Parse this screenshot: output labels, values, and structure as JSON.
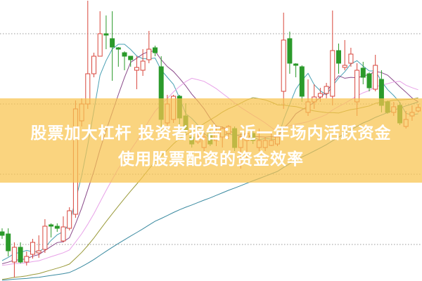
{
  "headline": {
    "line1": "股票加大杠杆 投资者报告：近一年场内活跃资金",
    "line2": "使用股票配资的资金效率"
  },
  "colors": {
    "up": "#d8463c",
    "down": "#2b9a2b",
    "banner": "#f8c44e",
    "grid": "#9a9a9a"
  },
  "chart_data": {
    "type": "candlestick",
    "grid": "horizontal dotted",
    "moving_averages": [
      {
        "period": 5,
        "color": "#4aa0b4"
      },
      {
        "period": 10,
        "color": "#8a4a8a"
      },
      {
        "period": 20,
        "color": "#e8a2e8"
      },
      {
        "period": 30,
        "color": "#9a9a3a"
      },
      {
        "period": 60,
        "color": "#3a8aa0"
      }
    ],
    "ohlc": [
      [
        7.0,
        7.5,
        6.0,
        6.5
      ],
      [
        6.7,
        7.5,
        3.5,
        4.3
      ],
      [
        2.7,
        5.5,
        0.5,
        4.8
      ],
      [
        4.8,
        5.5,
        2.5,
        2.7
      ],
      [
        2.7,
        4.2,
        2.2,
        3.5
      ],
      [
        3.8,
        6.0,
        3.2,
        5.5
      ],
      [
        4.0,
        6.5,
        3.3,
        4.3
      ],
      [
        4.5,
        8.8,
        4.0,
        7.8
      ],
      [
        8.0,
        8.2,
        6.2,
        7.8
      ],
      [
        7.8,
        8.2,
        7.0,
        7.5
      ],
      [
        5.7,
        9.2,
        5.5,
        7.7
      ],
      [
        7.5,
        10.5,
        7.2,
        10.0
      ],
      [
        9.5,
        25.7,
        9.0,
        24.5
      ],
      [
        22.8,
        26.0,
        22.0,
        25.2
      ],
      [
        25.2,
        40,
        24.5,
        29.5
      ],
      [
        29.5,
        32.5,
        29.0,
        32.0
      ],
      [
        32.0,
        38.4,
        32.0,
        35.2
      ],
      [
        35.2,
        37.8,
        33.0,
        35.0
      ],
      [
        34.5,
        38.4,
        28.5,
        33.3
      ],
      [
        33.2,
        33.3,
        30.5,
        33.0
      ],
      [
        32.5,
        32.7,
        30.0,
        32.0
      ],
      [
        32.0,
        32.0,
        30.5,
        31.5
      ],
      [
        30.0,
        32.0,
        27.3,
        30.4
      ],
      [
        30.0,
        33.0,
        29.2,
        31.3
      ],
      [
        31.5,
        35.6,
        31.0,
        33.0
      ],
      [
        33.2,
        33.5,
        32.0,
        32.5
      ],
      [
        30.5,
        32.0,
        21.0,
        23.0
      ],
      [
        22.5,
        26.5,
        22.0,
        25.2
      ],
      [
        23.0,
        26.5,
        22.5,
        26.3
      ],
      [
        26.3,
        26.5,
        22.0,
        23.2
      ],
      [
        23.5,
        25.3,
        21.0,
        21.5
      ],
      [
        20.5,
        21.5,
        19.0,
        19.5
      ],
      [
        19.8,
        21.0,
        19.5,
        20.5
      ],
      [
        19.0,
        21.0,
        18.5,
        20.5
      ],
      [
        21.0,
        21.5,
        19.2,
        19.5
      ],
      [
        20.0,
        22.0,
        19.2,
        21.2
      ],
      [
        20.5,
        22.0,
        19.0,
        21.7
      ],
      [
        21.0,
        22.2,
        20.2,
        22.0
      ],
      [
        21.7,
        22.0,
        18.5,
        19.0
      ],
      [
        19.0,
        21.0,
        16.0,
        20.5
      ],
      [
        20.0,
        22.0,
        17.5,
        21.0
      ],
      [
        21.0,
        21.5,
        19.5,
        20.0
      ],
      [
        19.0,
        21.7,
        18.5,
        20.0
      ],
      [
        19.0,
        20.5,
        18.5,
        20.0
      ],
      [
        19.3,
        21.0,
        19.2,
        20.0
      ],
      [
        19.5,
        21.0,
        19.2,
        20.5
      ],
      [
        27.0,
        38.2,
        24.5,
        34.3
      ],
      [
        34.5,
        35.5,
        29.5,
        31.0
      ],
      [
        30.9,
        31.0,
        29.0,
        30.7
      ],
      [
        30.5,
        30.7,
        25.5,
        26.3
      ],
      [
        24.0,
        28.7,
        23.5,
        25.5
      ],
      [
        25.5,
        28.0,
        24.5,
        26.2
      ],
      [
        26.2,
        27.5,
        25.5,
        26.7
      ],
      [
        26.7,
        28.2,
        26.0,
        27.7
      ],
      [
        26.3,
        38.5,
        25.0,
        32.8
      ],
      [
        32.8,
        33.8,
        29.5,
        31.0
      ],
      [
        30.4,
        34.3,
        30.0,
        30.7
      ],
      [
        31.0,
        33.2,
        30.5,
        32.3
      ],
      [
        25.5,
        31.0,
        23.5,
        30.0
      ],
      [
        30.3,
        31.2,
        28.0,
        29.0
      ],
      [
        29.5,
        29.7,
        27.0,
        27.5
      ],
      [
        27.3,
        32.2,
        27.0,
        30.7
      ],
      [
        28.7,
        30.0,
        24.0,
        25.0
      ],
      [
        25.5,
        25.7,
        23.8,
        24.0
      ],
      [
        24.0,
        25.5,
        23.5,
        24.8
      ],
      [
        25.0,
        25.5,
        22.2,
        22.5
      ],
      [
        22.0,
        24.2,
        21.7,
        23.0
      ],
      [
        23.5,
        25.0,
        22.8,
        24.0
      ],
      [
        24.2,
        25.2,
        24.0,
        24.7
      ]
    ]
  }
}
